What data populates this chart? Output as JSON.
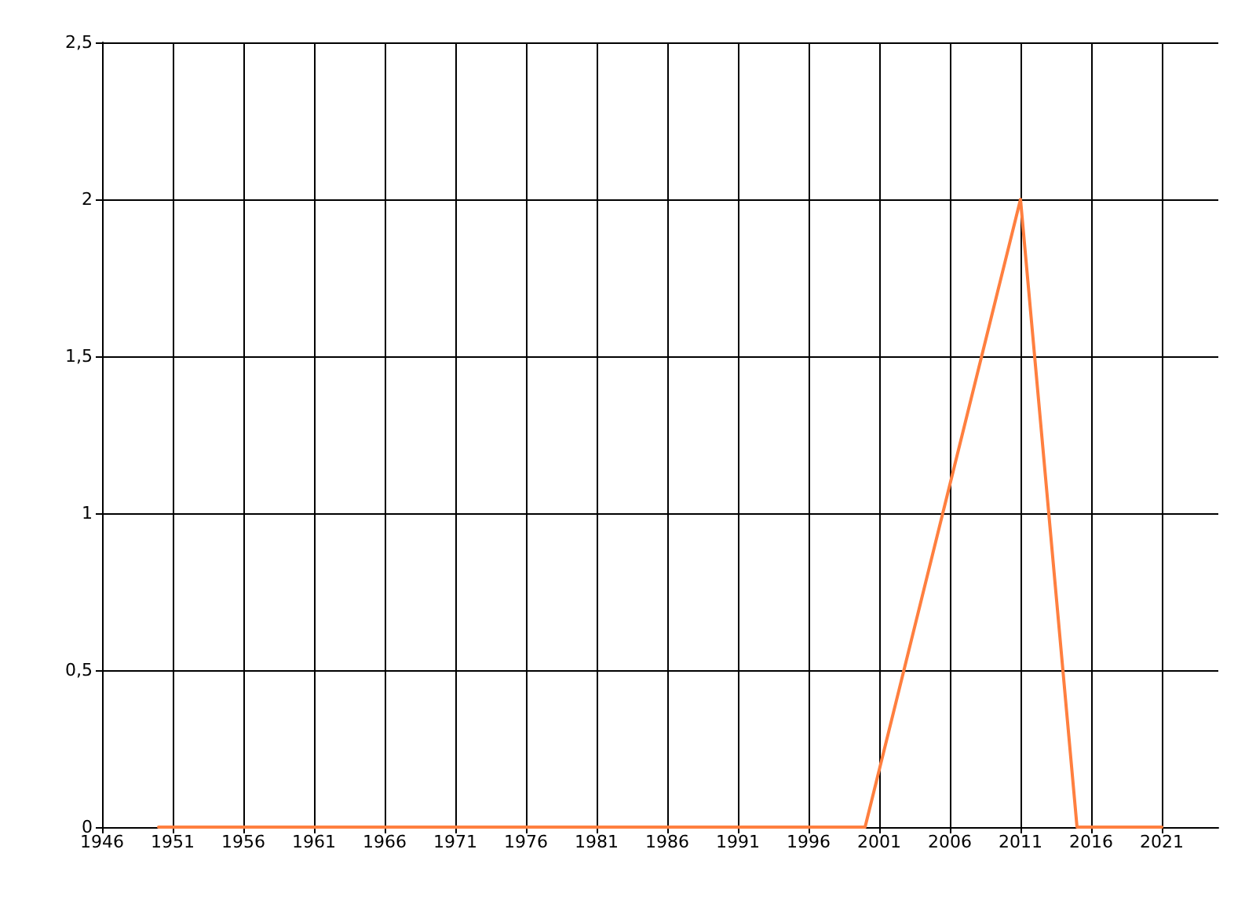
{
  "chart_data": {
    "type": "line",
    "x": [
      1950,
      2000,
      2011,
      2015,
      2021
    ],
    "series": [
      {
        "color": "#ff7f3f",
        "values": [
          0,
          0,
          2,
          0,
          0
        ]
      }
    ],
    "xlim": [
      1946,
      2025
    ],
    "xticks": [
      1946,
      1951,
      1956,
      1961,
      1966,
      1971,
      1976,
      1981,
      1986,
      1991,
      1996,
      2001,
      2006,
      2011,
      2016,
      2021
    ],
    "ylim": [
      0,
      2.5
    ],
    "yticks": [
      0,
      {
        "value": 0.5,
        "label": "0,5"
      },
      1,
      {
        "value": 1.5,
        "label": "1,5"
      },
      2,
      {
        "value": 2.5,
        "label": "2,5"
      }
    ],
    "grid": true,
    "marker": "none",
    "line_style": "solid"
  }
}
